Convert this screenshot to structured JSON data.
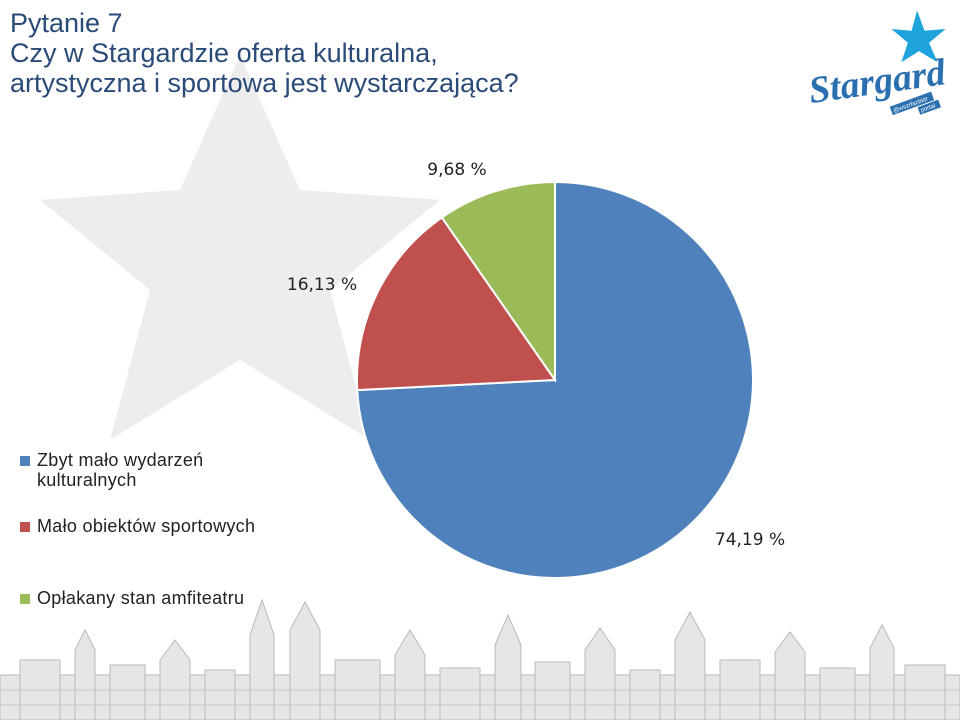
{
  "slide": {
    "title_lines": [
      "Pytanie 7",
      "Czy w Stargardzie oferta kulturalna,",
      "artystyczna i sportowa jest wystarczająca?"
    ]
  },
  "logo": {
    "wordmark": "Stargard",
    "tagline_1": "@wszrfazbiór",
    "tagline_2": "portal"
  },
  "colors": {
    "title": "#2a4a78",
    "blue": "#4f81bd",
    "red": "#c0504d",
    "green": "#9bbb59",
    "logo": "#2a6fb0",
    "star": "#1fa3dc"
  },
  "chart_data": {
    "type": "pie",
    "title": "",
    "series": [
      {
        "name": "Zbyt mało wydarzeń kulturalnych",
        "value": 74.19,
        "label": "74,19 %",
        "color": "#4f81bd"
      },
      {
        "name": "Mało obiektów sportowych",
        "value": 16.13,
        "label": "16,13 %",
        "color": "#c0504d"
      },
      {
        "name": "Opłakany stan amfiteatru",
        "value": 9.68,
        "label": "9,68 %",
        "color": "#9bbb59"
      }
    ],
    "start": "12 o'clock",
    "direction": "clockwise",
    "legend_position": "left"
  }
}
